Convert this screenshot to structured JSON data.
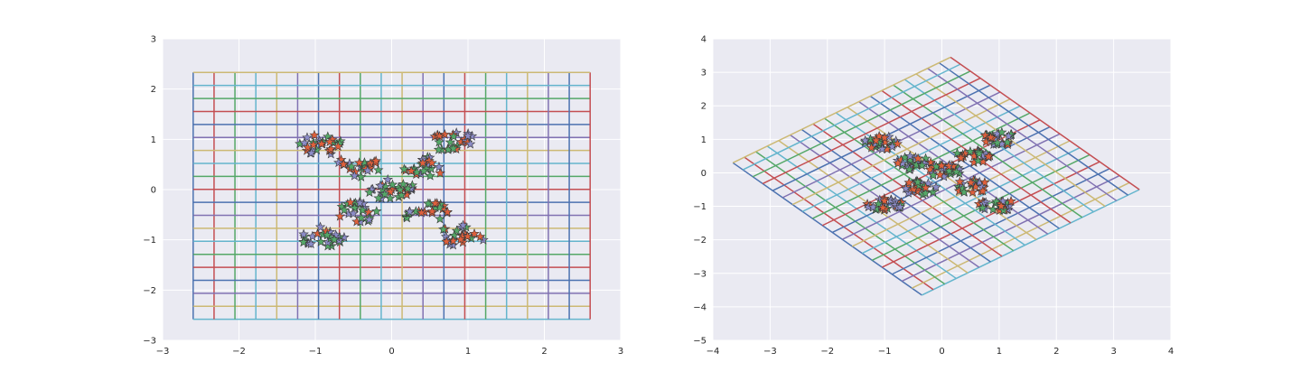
{
  "chart_data": [
    {
      "type": "scatter",
      "title": "",
      "xlabel": "",
      "ylabel": "",
      "xlim": [
        -3,
        3
      ],
      "ylim": [
        -3,
        3
      ],
      "x_ticks": [
        -3,
        -2,
        -1,
        0,
        1,
        2,
        3
      ],
      "y_ticks": [
        -3,
        -2,
        -1,
        0,
        1,
        2,
        3
      ],
      "x_tick_labels": [
        "−3",
        "−2",
        "−1",
        "0",
        "1",
        "2",
        "3"
      ],
      "y_tick_labels": [
        "−3",
        "−2",
        "−1",
        "0",
        "1",
        "2",
        "3"
      ],
      "grid": true,
      "background": "#eaeaf2",
      "grid_color": "#ffffff",
      "mesh": {
        "kind": "rectangular",
        "x_range": [
          -2.6,
          2.6
        ],
        "y_range": [
          -2.58,
          2.33
        ],
        "divisions": 19,
        "colors": [
          "#4c72b0",
          "#c44e52",
          "#55a868",
          "#64b5cd",
          "#ccb974",
          "#8172b2"
        ]
      },
      "marker": "star",
      "series_colors": {
        "purple": "#8c8cc8",
        "orange": "#e0603c",
        "green": "#55a868"
      },
      "clusters": [
        {
          "center": [
            -0.95,
            0.88
          ],
          "count": 28
        },
        {
          "center": [
            0.82,
            0.95
          ],
          "count": 26
        },
        {
          "center": [
            -0.92,
            -0.95
          ],
          "count": 28
        },
        {
          "center": [
            0.92,
            -0.92
          ],
          "count": 26
        },
        {
          "center": [
            -0.45,
            0.45
          ],
          "count": 24
        },
        {
          "center": [
            0.45,
            0.45
          ],
          "count": 24
        },
        {
          "center": [
            -0.45,
            -0.45
          ],
          "count": 24
        },
        {
          "center": [
            0.45,
            -0.45
          ],
          "count": 24
        },
        {
          "center": [
            0.0,
            0.0
          ],
          "count": 30
        }
      ]
    },
    {
      "type": "scatter",
      "title": "",
      "xlabel": "",
      "ylabel": "",
      "xlim": [
        -4,
        4
      ],
      "ylim": [
        -5,
        4
      ],
      "x_ticks": [
        -4,
        -3,
        -2,
        -1,
        0,
        1,
        2,
        3,
        4
      ],
      "y_ticks": [
        -5,
        -4,
        -3,
        -2,
        -1,
        0,
        1,
        2,
        3,
        4
      ],
      "x_tick_labels": [
        "−4",
        "−3",
        "−2",
        "−1",
        "0",
        "1",
        "2",
        "3",
        "4"
      ],
      "y_tick_labels": [
        "−5",
        "−4",
        "−3",
        "−2",
        "−1",
        "0",
        "1",
        "2",
        "3",
        "4"
      ],
      "grid": true,
      "background": "#eaeaf2",
      "grid_color": "#ffffff",
      "mesh": {
        "kind": "sheared",
        "corners": {
          "left": [
            -3.65,
            0.3
          ],
          "top": [
            0.15,
            3.45
          ],
          "right": [
            3.45,
            -0.5
          ],
          "bottom": [
            -0.35,
            -3.65
          ]
        },
        "divisions": 19,
        "colors": [
          "#4c72b0",
          "#c44e52",
          "#55a868",
          "#64b5cd",
          "#ccb974",
          "#8172b2"
        ]
      },
      "marker": "star",
      "series_colors": {
        "purple": "#8c8cc8",
        "orange": "#e0603c",
        "green": "#55a868"
      },
      "clusters": [
        {
          "center": [
            -1.05,
            0.9
          ],
          "count": 28
        },
        {
          "center": [
            1.0,
            1.0
          ],
          "count": 26
        },
        {
          "center": [
            -1.0,
            -0.95
          ],
          "count": 28
        },
        {
          "center": [
            0.95,
            -0.95
          ],
          "count": 26
        },
        {
          "center": [
            -0.5,
            0.3
          ],
          "count": 24
        },
        {
          "center": [
            0.55,
            0.5
          ],
          "count": 24
        },
        {
          "center": [
            -0.4,
            -0.45
          ],
          "count": 24
        },
        {
          "center": [
            0.5,
            -0.4
          ],
          "count": 24
        },
        {
          "center": [
            0.05,
            0.05
          ],
          "count": 30
        }
      ]
    }
  ]
}
